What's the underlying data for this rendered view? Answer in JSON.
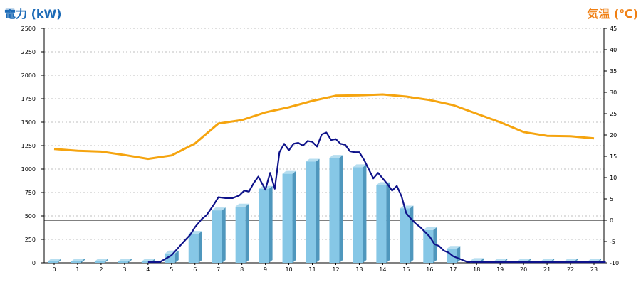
{
  "chart_data": {
    "type": "bar",
    "title": "",
    "xlabel": "",
    "ylabel_left": "電力 (kW)",
    "ylabel_right": "気温 (℃)",
    "categories": [
      "0",
      "1",
      "2",
      "3",
      "4",
      "5",
      "6",
      "7",
      "8",
      "9",
      "10",
      "11",
      "12",
      "13",
      "14",
      "15",
      "16",
      "17",
      "18",
      "19",
      "20",
      "21",
      "22",
      "23"
    ],
    "ylim_left": [
      0,
      2500
    ],
    "yticks_left": [
      "0",
      "250",
      "500",
      "750",
      "1000",
      "1250",
      "1500",
      "1750",
      "2000",
      "2250",
      "2500"
    ],
    "ylim_right": [
      -10,
      45
    ],
    "yticks_right": [
      "-10",
      "-5",
      "0",
      "5",
      "10",
      "15",
      "20",
      "25",
      "30",
      "35",
      "40",
      "45"
    ],
    "grid": true,
    "series": [
      {
        "kind": "bar",
        "axis": "left",
        "values": [
          0,
          0,
          0,
          0,
          0,
          100,
          310,
          560,
          600,
          790,
          950,
          1080,
          1120,
          1020,
          830,
          580,
          350,
          150,
          20,
          0,
          0,
          0,
          0,
          0
        ]
      },
      {
        "kind": "line",
        "axis": "left",
        "x": [
          4.0,
          4.5,
          5.0,
          5.5,
          5.8,
          6.0,
          6.3,
          6.5,
          6.8,
          7.0,
          7.3,
          7.6,
          7.9,
          8.1,
          8.3,
          8.5,
          8.7,
          9.0,
          9.2,
          9.4,
          9.6,
          9.8,
          10.0,
          10.2,
          10.4,
          10.6,
          10.8,
          11.0,
          11.2,
          11.4,
          11.6,
          11.8,
          12.0,
          12.2,
          12.4,
          12.6,
          12.8,
          13.0,
          13.2,
          13.4,
          13.6,
          13.8,
          14.0,
          14.2,
          14.4,
          14.6,
          14.8,
          15.0,
          15.2,
          15.4,
          15.6,
          15.8,
          16.0,
          16.2,
          16.4,
          16.6,
          16.8,
          17.0,
          17.3,
          17.6,
          18.0,
          23.5
        ],
        "values": [
          0,
          0,
          80,
          220,
          300,
          380,
          470,
          510,
          620,
          700,
          690,
          690,
          720,
          770,
          760,
          850,
          920,
          780,
          960,
          790,
          1180,
          1270,
          1200,
          1270,
          1280,
          1250,
          1300,
          1290,
          1240,
          1370,
          1390,
          1310,
          1320,
          1270,
          1260,
          1190,
          1180,
          1180,
          1100,
          1000,
          900,
          960,
          900,
          840,
          770,
          820,
          710,
          530,
          470,
          420,
          380,
          330,
          280,
          200,
          180,
          130,
          110,
          70,
          40,
          10,
          0,
          0
        ]
      },
      {
        "kind": "line",
        "axis": "right",
        "x": [
          0,
          1,
          2,
          3,
          4,
          5,
          6,
          7,
          8,
          9,
          10,
          11,
          12,
          13,
          14,
          15,
          16,
          17,
          18,
          19,
          20,
          21,
          22,
          23
        ],
        "values": [
          16.7,
          16.3,
          16.1,
          15.3,
          14.4,
          15.2,
          18.0,
          22.7,
          23.5,
          25.3,
          26.5,
          28.0,
          29.2,
          29.3,
          29.5,
          29.0,
          28.2,
          27.0,
          25.0,
          23.0,
          20.7,
          19.8,
          19.7,
          19.2
        ]
      }
    ],
    "colors": {
      "left_title": "#1C6BB7",
      "right_title": "#F07F12",
      "bar_front": "#86C7E6",
      "bar_side": "#4F97BD",
      "bar_top": "#B6DEF0",
      "power_line": "#0E128A",
      "temp_line": "#F5A40F",
      "grid": "#BFBFBF",
      "axis": "#000000",
      "tick_text": "#000000"
    }
  }
}
